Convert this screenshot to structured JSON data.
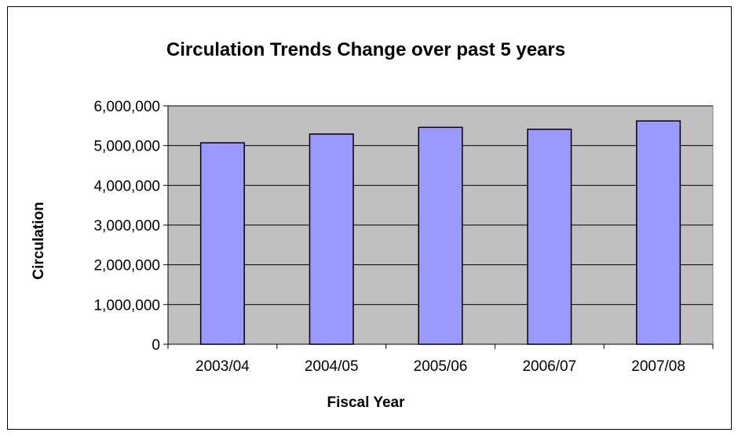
{
  "chart_data": {
    "type": "bar",
    "title": "Circulation Trends Change over past 5 years",
    "xlabel": "Fiscal Year",
    "ylabel": "Circulation",
    "categories": [
      "2003/04",
      "2004/05",
      "2005/06",
      "2006/07",
      "2007/08"
    ],
    "values": [
      5070000,
      5290000,
      5460000,
      5410000,
      5620000
    ],
    "ylim": [
      0,
      6000000
    ],
    "yticks": [
      0,
      1000000,
      2000000,
      3000000,
      4000000,
      5000000,
      6000000
    ],
    "ytick_labels": [
      "0",
      "1,000,000",
      "2,000,000",
      "3,000,000",
      "4,000,000",
      "5,000,000",
      "6,000,000"
    ],
    "grid": true,
    "legend": "none",
    "colors": {
      "bar_fill": "#9999ff",
      "bar_stroke": "#000000",
      "plot_background": "#c0c0c0",
      "gridline": "#000000"
    }
  }
}
